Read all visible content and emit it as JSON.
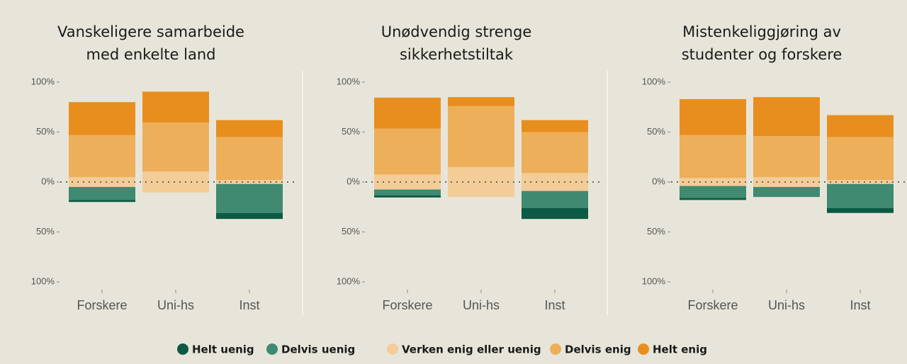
{
  "chart_data": [
    {
      "type": "bar",
      "stacked": true,
      "diverging": true,
      "title": [
        "Vanskeligere samarbeide",
        "med enkelte land"
      ],
      "categories": [
        "Forskere",
        "Uni-hs",
        "Inst"
      ],
      "ylim": [
        -100,
        100
      ],
      "yticks": [
        {
          "value": -100,
          "label": "100%"
        },
        {
          "value": -50,
          "label": "50%"
        },
        {
          "value": 0,
          "label": "0%"
        },
        {
          "value": 50,
          "label": "50%"
        },
        {
          "value": 100,
          "label": "100%"
        }
      ],
      "series": [
        {
          "name": "Helt uenig",
          "color": "#0b5a43",
          "values": [
            2,
            0,
            6
          ]
        },
        {
          "name": "Delvis uenig",
          "color": "#3f8a70",
          "values": [
            13,
            0,
            29
          ]
        },
        {
          "name": "Verken enig eller uenig",
          "color": "#f3cc97",
          "values": [
            10,
            21,
            4
          ]
        },
        {
          "name": "Delvis enig",
          "color": "#edaf5a",
          "values": [
            42,
            49,
            43
          ]
        },
        {
          "name": "Helt enig",
          "color": "#e88e1e",
          "values": [
            33,
            31,
            17
          ]
        }
      ]
    },
    {
      "type": "bar",
      "stacked": true,
      "diverging": true,
      "title": [
        "Unødvendig strenge",
        "sikkerhetstiltak"
      ],
      "categories": [
        "Forskere",
        "Uni-hs",
        "Inst"
      ],
      "ylim": [
        -100,
        100
      ],
      "yticks": [
        {
          "value": -100,
          "label": "100%"
        },
        {
          "value": -50,
          "label": "50%"
        },
        {
          "value": 0,
          "label": "0%"
        },
        {
          "value": 50,
          "label": "50%"
        },
        {
          "value": 100,
          "label": "100%"
        }
      ],
      "series": [
        {
          "name": "Helt uenig",
          "color": "#0b5a43",
          "values": [
            2,
            0,
            11
          ]
        },
        {
          "name": "Delvis uenig",
          "color": "#3f8a70",
          "values": [
            6,
            0,
            17
          ]
        },
        {
          "name": "Verken enig eller uenig",
          "color": "#f3cc97",
          "values": [
            15,
            30,
            18
          ]
        },
        {
          "name": "Delvis enig",
          "color": "#edaf5a",
          "values": [
            46,
            61,
            41
          ]
        },
        {
          "name": "Helt enig",
          "color": "#e88e1e",
          "values": [
            31,
            9,
            12
          ]
        }
      ]
    },
    {
      "type": "bar",
      "stacked": true,
      "diverging": true,
      "title": [
        "Mistenkeliggjøring av",
        "studenter og forskere"
      ],
      "categories": [
        "Forskere",
        "Uni-hs",
        "Inst"
      ],
      "ylim": [
        -100,
        100
      ],
      "yticks": [
        {
          "value": -100,
          "label": "100%"
        },
        {
          "value": -50,
          "label": "50%"
        },
        {
          "value": 0,
          "label": "0%"
        },
        {
          "value": 50,
          "label": "50%"
        },
        {
          "value": 100,
          "label": "100%"
        }
      ],
      "series": [
        {
          "name": "Helt uenig",
          "color": "#0b5a43",
          "values": [
            2,
            0,
            5
          ]
        },
        {
          "name": "Delvis uenig",
          "color": "#3f8a70",
          "values": [
            12,
            10,
            24
          ]
        },
        {
          "name": "Verken enig eller uenig",
          "color": "#f3cc97",
          "values": [
            8,
            10,
            4
          ]
        },
        {
          "name": "Delvis enig",
          "color": "#edaf5a",
          "values": [
            43,
            41,
            43
          ]
        },
        {
          "name": "Helt enig",
          "color": "#e88e1e",
          "values": [
            36,
            39,
            22
          ]
        }
      ]
    }
  ]
}
